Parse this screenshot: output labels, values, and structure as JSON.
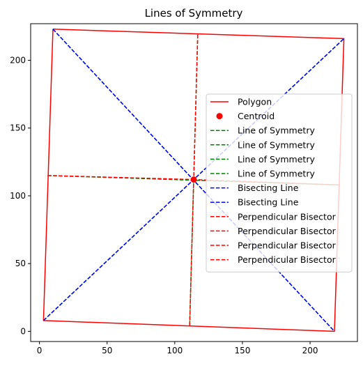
{
  "chart_data": {
    "type": "line",
    "title": "Lines of Symmetry",
    "xlabel": "",
    "ylabel": "",
    "xlim": [
      -6.5,
      235
    ],
    "ylim": [
      -7.5,
      227
    ],
    "x_ticks": [
      0,
      50,
      100,
      150,
      200
    ],
    "y_ticks": [
      0,
      50,
      100,
      150,
      200
    ],
    "grid": false,
    "legend_position": "center-right",
    "colors": {
      "polygon": "#ff0000",
      "symmetry": "#008000",
      "bisecting": "#0000ff",
      "perpendicular": "#ff0000",
      "centroid": "#ff0000"
    },
    "polygon": {
      "name": "Polygon",
      "points": [
        [
          10,
          223
        ],
        [
          225,
          216
        ],
        [
          218,
          0
        ],
        [
          3,
          8
        ],
        [
          10,
          223
        ]
      ]
    },
    "centroid": {
      "name": "Centroid",
      "point": [
        114,
        112
      ]
    },
    "symmetry_lines": [
      {
        "name": "Line of Symmetry",
        "points": [
          [
            117,
            219
          ],
          [
            111,
            4
          ]
        ]
      },
      {
        "name": "Line of Symmetry",
        "points": [
          [
            6,
            115
          ],
          [
            222,
            108
          ]
        ]
      },
      {
        "name": "Line of Symmetry",
        "points": [
          [
            10,
            223
          ],
          [
            218,
            0
          ]
        ]
      },
      {
        "name": "Line of Symmetry",
        "points": [
          [
            3,
            8
          ],
          [
            225,
            216
          ]
        ]
      }
    ],
    "bisecting_lines": [
      {
        "name": "Bisecting Line",
        "points": [
          [
            10,
            223
          ],
          [
            218,
            0
          ]
        ]
      },
      {
        "name": "Bisecting Line",
        "points": [
          [
            3,
            8
          ],
          [
            225,
            216
          ]
        ]
      }
    ],
    "perpendicular_bisectors": [
      {
        "name": "Perpendicular Bisector",
        "points": [
          [
            117,
            219
          ],
          [
            114,
            112
          ]
        ]
      },
      {
        "name": "Perpendicular Bisector",
        "points": [
          [
            111,
            4
          ],
          [
            114,
            112
          ]
        ]
      },
      {
        "name": "Perpendicular Bisector",
        "points": [
          [
            6,
            115
          ],
          [
            114,
            112
          ]
        ]
      },
      {
        "name": "Perpendicular Bisector",
        "points": [
          [
            222,
            108
          ],
          [
            114,
            112
          ]
        ]
      }
    ]
  }
}
